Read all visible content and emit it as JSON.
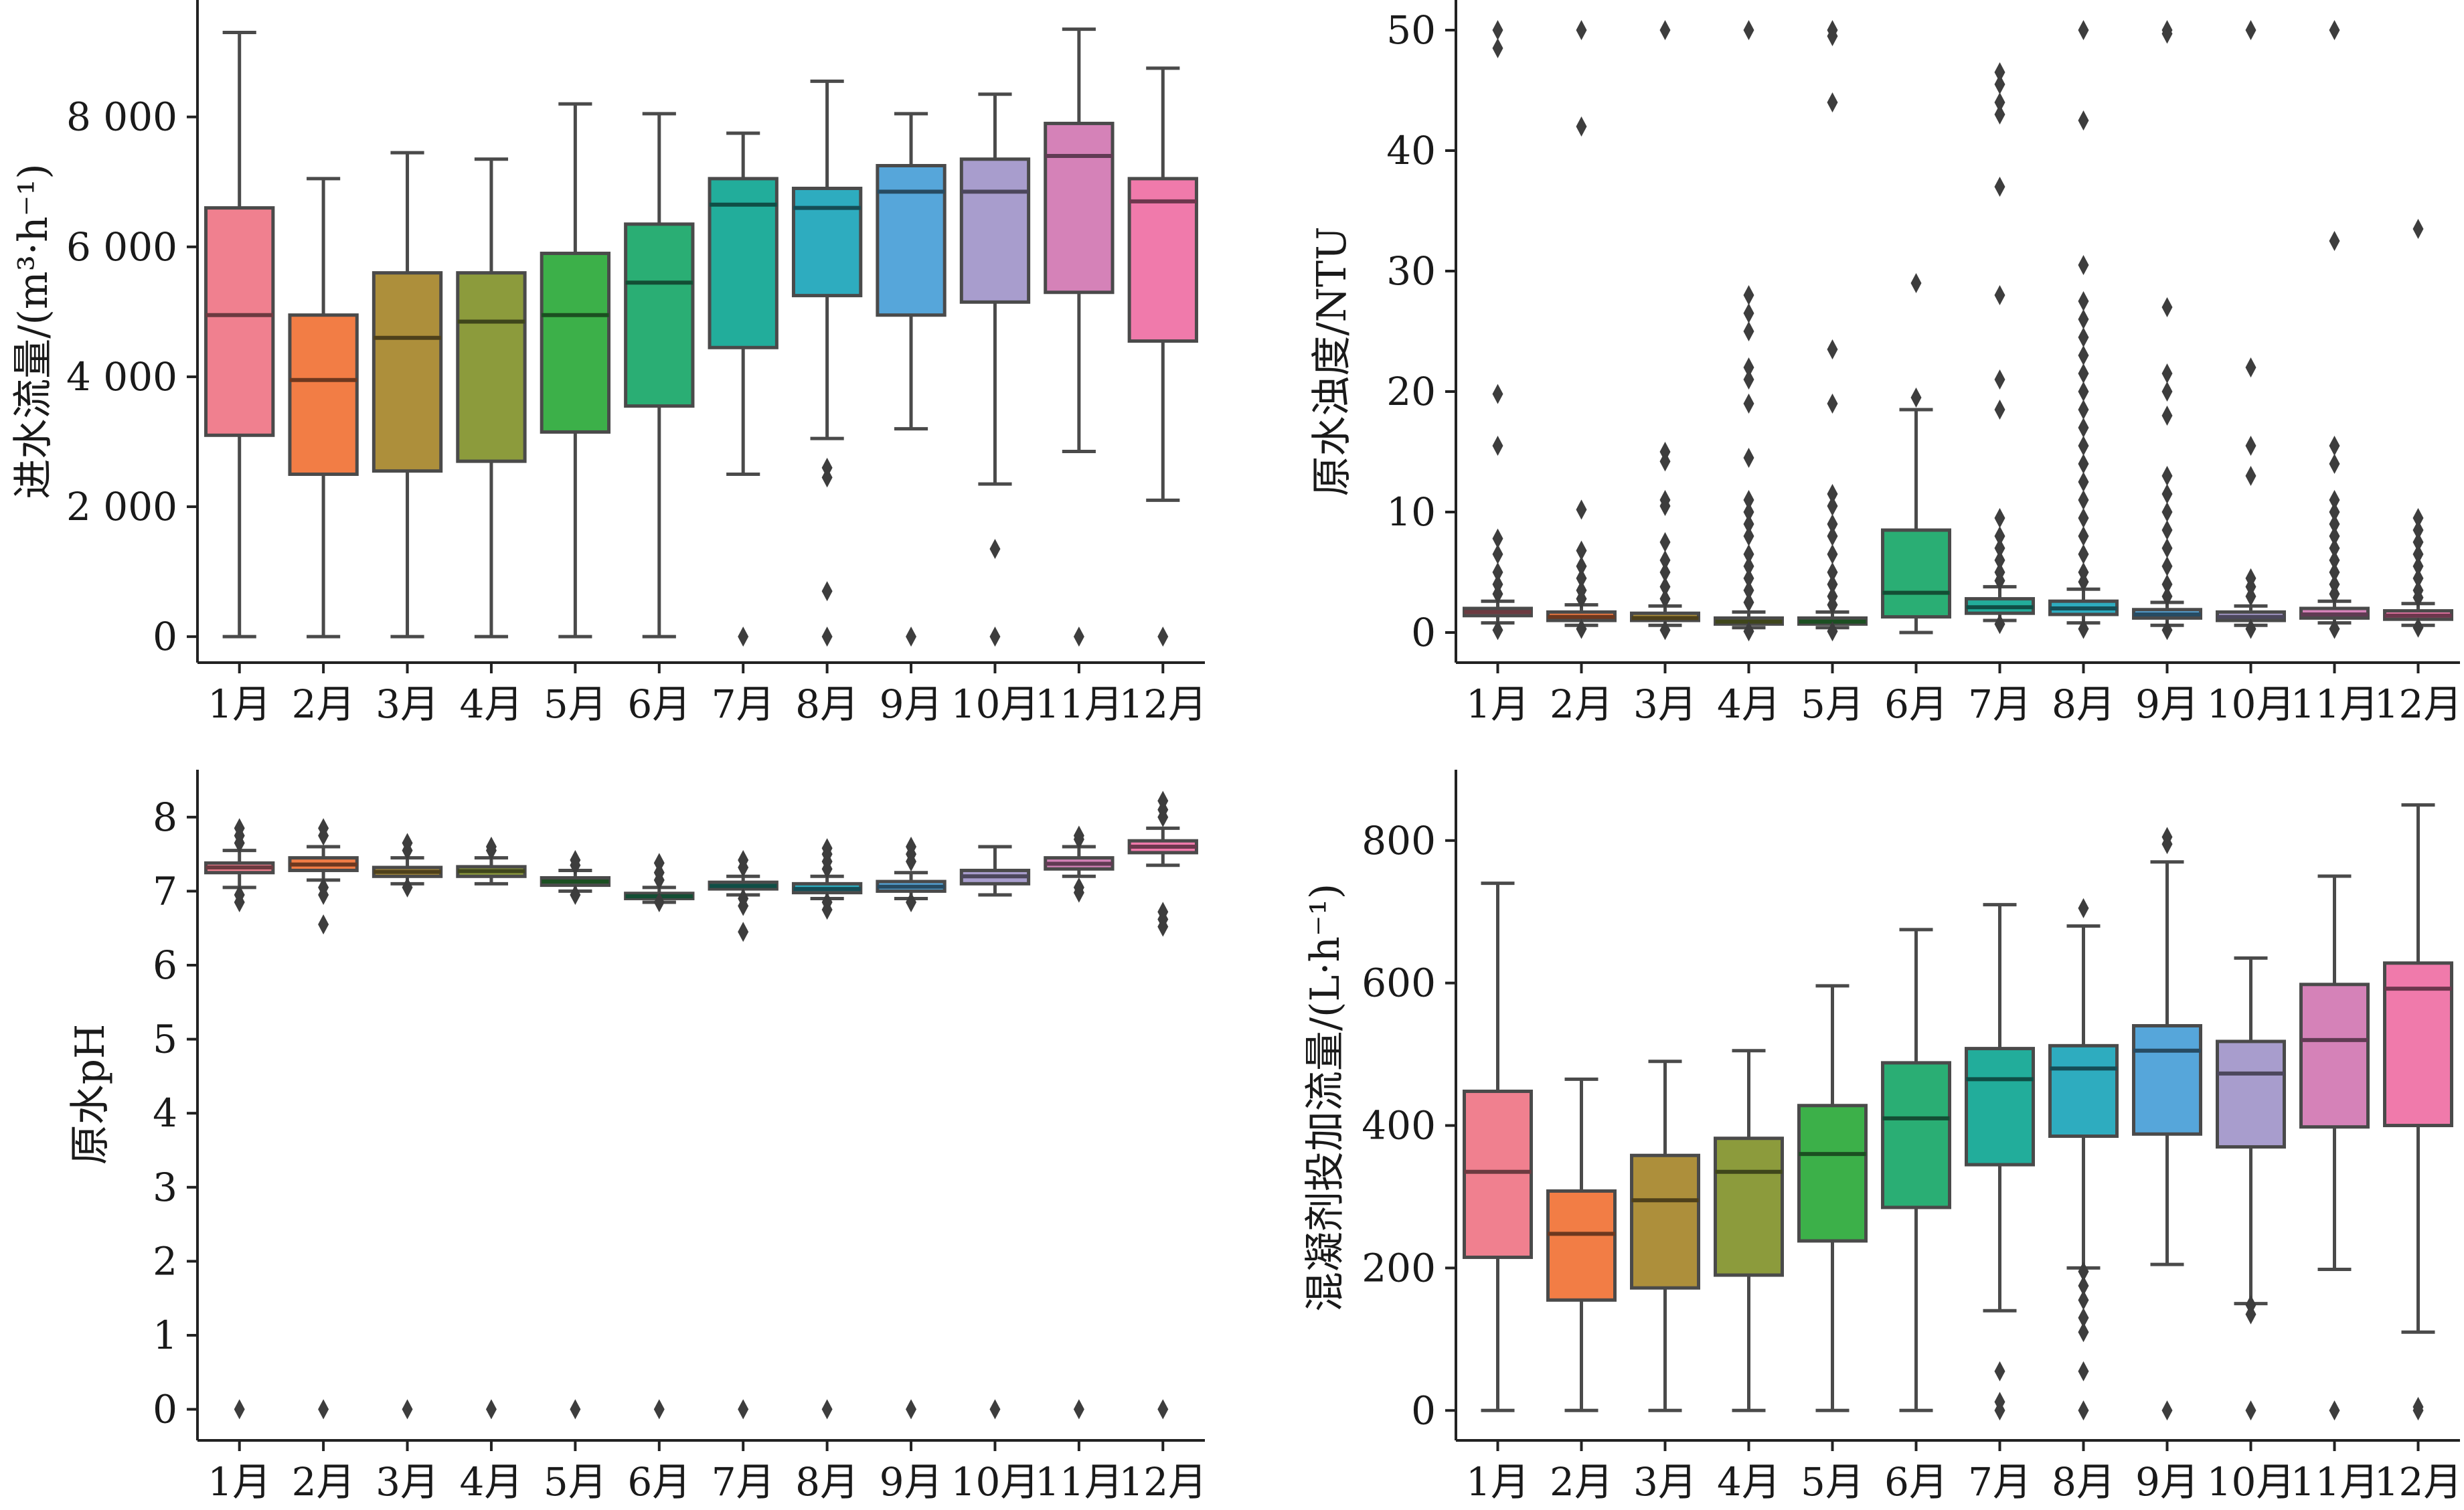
{
  "chart_data": [
    {
      "type": "box",
      "ylabel": "进水流量/(m³·h⁻¹)",
      "categories": [
        "1月",
        "2月",
        "3月",
        "4月",
        "5月",
        "6月",
        "7月",
        "8月",
        "9月",
        "10月",
        "11月",
        "12月"
      ],
      "yticks": [
        0,
        2000,
        4000,
        6000,
        8000
      ],
      "ytick_labels": [
        "0",
        "2 000",
        "4 000",
        "6 000",
        "8 000"
      ],
      "ylim": [
        -400,
        9800
      ],
      "colors": [
        "#f0808f",
        "#f27d45",
        "#ad8f3b",
        "#8c9b3c",
        "#3cb049",
        "#2aae74",
        "#22ad9b",
        "#2eacbf",
        "#56a6da",
        "#a89dcd",
        "#d582b8",
        "#f07aab"
      ],
      "boxes": [
        {
          "whisker_low": 0,
          "q1": 3100,
          "median": 4950,
          "q3": 6600,
          "whisker_high": 9300,
          "outliers": []
        },
        {
          "whisker_low": 0,
          "q1": 2500,
          "median": 3950,
          "q3": 4950,
          "whisker_high": 7050,
          "outliers": []
        },
        {
          "whisker_low": 0,
          "q1": 2550,
          "median": 4600,
          "q3": 5600,
          "whisker_high": 7450,
          "outliers": []
        },
        {
          "whisker_low": 0,
          "q1": 2700,
          "median": 4850,
          "q3": 5600,
          "whisker_high": 7350,
          "outliers": []
        },
        {
          "whisker_low": 0,
          "q1": 3150,
          "median": 4950,
          "q3": 5900,
          "whisker_high": 8200,
          "outliers": []
        },
        {
          "whisker_low": 0,
          "q1": 3550,
          "median": 5450,
          "q3": 6350,
          "whisker_high": 8050,
          "outliers": []
        },
        {
          "whisker_low": 2500,
          "q1": 4450,
          "median": 6650,
          "q3": 7050,
          "whisker_high": 7750,
          "outliers": [
            0
          ]
        },
        {
          "whisker_low": 3050,
          "q1": 5250,
          "median": 6600,
          "q3": 6900,
          "whisker_high": 8550,
          "outliers": [
            2600,
            2450,
            700,
            0
          ]
        },
        {
          "whisker_low": 3200,
          "q1": 4950,
          "median": 6850,
          "q3": 7250,
          "whisker_high": 8050,
          "outliers": [
            0
          ]
        },
        {
          "whisker_low": 2350,
          "q1": 5150,
          "median": 6850,
          "q3": 7350,
          "whisker_high": 8350,
          "outliers": [
            1350,
            0
          ]
        },
        {
          "whisker_low": 2850,
          "q1": 5300,
          "median": 7400,
          "q3": 7900,
          "whisker_high": 9350,
          "outliers": [
            0
          ]
        },
        {
          "whisker_low": 2100,
          "q1": 4550,
          "median": 6700,
          "q3": 7050,
          "whisker_high": 8750,
          "outliers": [
            0
          ]
        }
      ]
    },
    {
      "type": "box",
      "ylabel": "原水浊度/NTU",
      "categories": [
        "1月",
        "2月",
        "3月",
        "4月",
        "5月",
        "6月",
        "7月",
        "8月",
        "9月",
        "10月",
        "11月",
        "12月"
      ],
      "yticks": [
        0,
        10,
        20,
        30,
        40,
        50
      ],
      "ytick_labels": [
        "0",
        "10",
        "20",
        "30",
        "40",
        "50"
      ],
      "ylim": [
        -2.5,
        52.5
      ],
      "colors": [
        "#f0808f",
        "#f27d45",
        "#ad8f3b",
        "#8c9b3c",
        "#3cb049",
        "#2aae74",
        "#22ad9b",
        "#2eacbf",
        "#56a6da",
        "#a89dcd",
        "#d582b8",
        "#f07aab"
      ],
      "boxes": [
        {
          "whisker_low": 0.8,
          "q1": 1.4,
          "median": 1.7,
          "q3": 2.0,
          "whisker_high": 2.6,
          "outliers": [
            50,
            48.5,
            19.8,
            15.5,
            7.8,
            6.5,
            5,
            4,
            3.2,
            0.2
          ]
        },
        {
          "whisker_low": 0.6,
          "q1": 1.0,
          "median": 1.3,
          "q3": 1.7,
          "whisker_high": 2.3,
          "outliers": [
            50,
            42,
            10.2,
            6.8,
            5.5,
            4.5,
            3.5,
            2.8,
            0.3
          ]
        },
        {
          "whisker_low": 0.6,
          "q1": 1.0,
          "median": 1.2,
          "q3": 1.6,
          "whisker_high": 2.2,
          "outliers": [
            50,
            15,
            14.2,
            11,
            10.5,
            7.5,
            6,
            5,
            3.8,
            2.8,
            0.2
          ]
        },
        {
          "whisker_low": 0.4,
          "q1": 0.7,
          "median": 0.9,
          "q3": 1.2,
          "whisker_high": 1.7,
          "outliers": [
            50,
            28,
            26.5,
            25,
            22,
            21,
            19,
            14.5,
            11,
            10,
            9,
            8,
            6.5,
            5.5,
            4.5,
            3.5,
            2.5,
            0.1
          ]
        },
        {
          "whisker_low": 0.4,
          "q1": 0.7,
          "median": 0.9,
          "q3": 1.2,
          "whisker_high": 1.7,
          "outliers": [
            50,
            49.5,
            44,
            23.5,
            19,
            11.5,
            10.5,
            9,
            8,
            6.5,
            5,
            4,
            3,
            2.3,
            0.1
          ]
        },
        {
          "whisker_low": 0.0,
          "q1": 1.3,
          "median": 3.3,
          "q3": 8.5,
          "whisker_high": 18.5,
          "outliers": [
            29,
            19.5
          ]
        },
        {
          "whisker_low": 1.0,
          "q1": 1.6,
          "median": 2.1,
          "q3": 2.8,
          "whisker_high": 3.8,
          "outliers": [
            46.5,
            45.5,
            44,
            43,
            37,
            28,
            21,
            18.5,
            9.5,
            8,
            7,
            6,
            5,
            4.3,
            0.7
          ]
        },
        {
          "whisker_low": 0.8,
          "q1": 1.5,
          "median": 2.0,
          "q3": 2.6,
          "whisker_high": 3.6,
          "outliers": [
            50,
            42.5,
            30.5,
            27.5,
            26,
            24.5,
            23,
            21.5,
            20,
            18.5,
            17,
            15.5,
            14,
            12.5,
            11,
            9.5,
            8,
            6.5,
            5,
            4.2,
            0.3
          ]
        },
        {
          "whisker_low": 0.6,
          "q1": 1.2,
          "median": 1.5,
          "q3": 1.9,
          "whisker_high": 2.5,
          "outliers": [
            50,
            49.7,
            27,
            21.5,
            20,
            18,
            13,
            11.5,
            10,
            8.5,
            7,
            5.5,
            4,
            3,
            0.2
          ]
        },
        {
          "whisker_low": 0.6,
          "q1": 1.0,
          "median": 1.3,
          "q3": 1.7,
          "whisker_high": 2.2,
          "outliers": [
            50,
            22,
            15.5,
            13,
            4.5,
            3.8,
            3,
            0.3
          ]
        },
        {
          "whisker_low": 0.8,
          "q1": 1.2,
          "median": 1.5,
          "q3": 2.0,
          "whisker_high": 2.6,
          "outliers": [
            50,
            32.5,
            15.5,
            14,
            11,
            10,
            9,
            8,
            7,
            6,
            5,
            4,
            3.2,
            0.3
          ]
        },
        {
          "whisker_low": 0.6,
          "q1": 1.1,
          "median": 1.4,
          "q3": 1.8,
          "whisker_high": 2.4,
          "outliers": [
            33.5,
            9.5,
            8.5,
            7.5,
            6.5,
            5.5,
            4.5,
            3.5,
            2.9,
            0.4
          ]
        }
      ]
    },
    {
      "type": "box",
      "ylabel": "原水pH",
      "categories": [
        "1月",
        "2月",
        "3月",
        "4月",
        "5月",
        "6月",
        "7月",
        "8月",
        "9月",
        "10月",
        "11月",
        "12月"
      ],
      "yticks": [
        0,
        1,
        2,
        3,
        4,
        5,
        6,
        7,
        8
      ],
      "ytick_labels": [
        "0",
        "1",
        "2",
        "3",
        "4",
        "5",
        "6",
        "7",
        "8"
      ],
      "ylim": [
        -0.42,
        8.55
      ],
      "colors": [
        "#f0808f",
        "#f27d45",
        "#ad8f3b",
        "#8c9b3c",
        "#3cb049",
        "#2aae74",
        "#22ad9b",
        "#2eacbf",
        "#56a6da",
        "#a89dcd",
        "#d582b8",
        "#f07aab"
      ],
      "boxes": [
        {
          "whisker_low": 7.05,
          "q1": 7.25,
          "median": 7.32,
          "q3": 7.38,
          "whisker_high": 7.55,
          "outliers": [
            7.85,
            7.75,
            7.65,
            6.95,
            6.85,
            0
          ]
        },
        {
          "whisker_low": 7.15,
          "q1": 7.28,
          "median": 7.36,
          "q3": 7.45,
          "whisker_high": 7.6,
          "outliers": [
            7.85,
            7.75,
            7.05,
            6.95,
            6.55,
            0
          ]
        },
        {
          "whisker_low": 7.1,
          "q1": 7.2,
          "median": 7.26,
          "q3": 7.32,
          "whisker_high": 7.45,
          "outliers": [
            7.65,
            7.55,
            7.05,
            0
          ]
        },
        {
          "whisker_low": 7.1,
          "q1": 7.2,
          "median": 7.27,
          "q3": 7.33,
          "whisker_high": 7.45,
          "outliers": [
            7.6,
            7.55,
            0
          ]
        },
        {
          "whisker_low": 7.0,
          "q1": 7.08,
          "median": 7.13,
          "q3": 7.18,
          "whisker_high": 7.28,
          "outliers": [
            7.42,
            7.35,
            6.95,
            0
          ]
        },
        {
          "whisker_low": 6.85,
          "q1": 6.9,
          "median": 6.93,
          "q3": 6.97,
          "whisker_high": 7.05,
          "outliers": [
            7.38,
            7.25,
            7.15,
            6.85,
            0
          ]
        },
        {
          "whisker_low": 6.95,
          "q1": 7.03,
          "median": 7.07,
          "q3": 7.12,
          "whisker_high": 7.2,
          "outliers": [
            7.42,
            7.32,
            6.9,
            6.8,
            6.45,
            0
          ]
        },
        {
          "whisker_low": 6.9,
          "q1": 6.98,
          "median": 7.03,
          "q3": 7.1,
          "whisker_high": 7.2,
          "outliers": [
            7.58,
            7.5,
            7.4,
            7.3,
            6.85,
            6.75,
            0
          ]
        },
        {
          "whisker_low": 6.9,
          "q1": 7.0,
          "median": 7.06,
          "q3": 7.13,
          "whisker_high": 7.25,
          "outliers": [
            7.6,
            7.5,
            7.4,
            6.85,
            0
          ]
        },
        {
          "whisker_low": 6.95,
          "q1": 7.1,
          "median": 7.2,
          "q3": 7.28,
          "whisker_high": 7.6,
          "outliers": [
            0
          ]
        },
        {
          "whisker_low": 7.2,
          "q1": 7.3,
          "median": 7.37,
          "q3": 7.45,
          "whisker_high": 7.6,
          "outliers": [
            7.75,
            7.7,
            7.05,
            6.98,
            0
          ]
        },
        {
          "whisker_low": 7.35,
          "q1": 7.52,
          "median": 7.6,
          "q3": 7.68,
          "whisker_high": 7.85,
          "outliers": [
            8.22,
            8.1,
            8.0,
            6.72,
            6.62,
            6.52,
            0
          ]
        }
      ]
    },
    {
      "type": "box",
      "ylabel": "混凝剂投加流量/(L·h⁻¹)",
      "categories": [
        "1月",
        "2月",
        "3月",
        "4月",
        "5月",
        "6月",
        "7月",
        "8月",
        "9月",
        "10月",
        "11月",
        "12月"
      ],
      "yticks": [
        0,
        200,
        400,
        600,
        800
      ],
      "ytick_labels": [
        "0",
        "200",
        "400",
        "600",
        "800"
      ],
      "ylim": [
        -42,
        890
      ],
      "colors": [
        "#f0808f",
        "#f27d45",
        "#ad8f3b",
        "#8c9b3c",
        "#3cb049",
        "#2aae74",
        "#22ad9b",
        "#2eacbf",
        "#56a6da",
        "#a89dcd",
        "#d582b8",
        "#f07aab"
      ],
      "boxes": [
        {
          "whisker_low": 0,
          "q1": 215,
          "median": 335,
          "q3": 448,
          "whisker_high": 740,
          "outliers": []
        },
        {
          "whisker_low": 0,
          "q1": 155,
          "median": 248,
          "q3": 308,
          "whisker_high": 465,
          "outliers": []
        },
        {
          "whisker_low": 0,
          "q1": 172,
          "median": 295,
          "q3": 358,
          "whisker_high": 490,
          "outliers": []
        },
        {
          "whisker_low": 0,
          "q1": 190,
          "median": 335,
          "q3": 382,
          "whisker_high": 505,
          "outliers": []
        },
        {
          "whisker_low": 0,
          "q1": 238,
          "median": 360,
          "q3": 428,
          "whisker_high": 596,
          "outliers": []
        },
        {
          "whisker_low": 0,
          "q1": 285,
          "median": 410,
          "q3": 488,
          "whisker_high": 675,
          "outliers": []
        },
        {
          "whisker_low": 140,
          "q1": 345,
          "median": 465,
          "q3": 508,
          "whisker_high": 710,
          "outliers": [
            55,
            12,
            0
          ]
        },
        {
          "whisker_low": 200,
          "q1": 385,
          "median": 480,
          "q3": 512,
          "whisker_high": 680,
          "outliers": [
            705,
            195,
            175,
            155,
            130,
            110,
            55,
            0
          ]
        },
        {
          "whisker_low": 205,
          "q1": 388,
          "median": 505,
          "q3": 540,
          "whisker_high": 770,
          "outliers": [
            805,
            795,
            0
          ]
        },
        {
          "whisker_low": 150,
          "q1": 370,
          "median": 473,
          "q3": 518,
          "whisker_high": 635,
          "outliers": [
            148,
            135,
            0
          ]
        },
        {
          "whisker_low": 198,
          "q1": 398,
          "median": 520,
          "q3": 598,
          "whisker_high": 750,
          "outliers": [
            0
          ]
        },
        {
          "whisker_low": 110,
          "q1": 400,
          "median": 592,
          "q3": 628,
          "whisker_high": 850,
          "outliers": [
            5,
            0
          ]
        }
      ]
    }
  ]
}
